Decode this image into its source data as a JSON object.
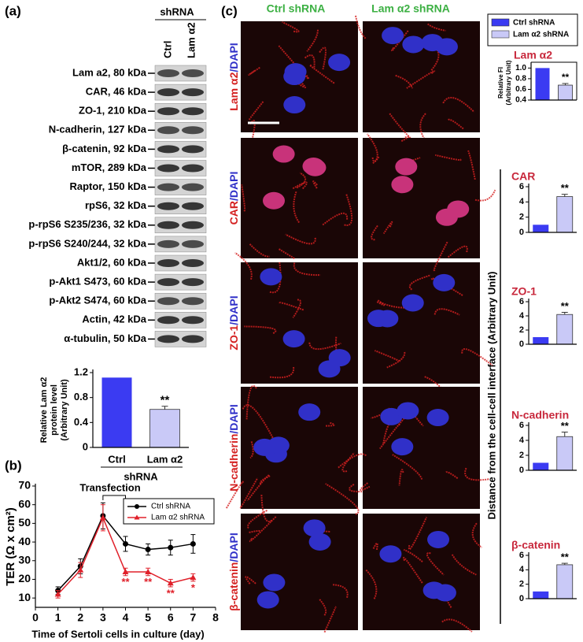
{
  "blot": {
    "label": "(a)",
    "group_label": "shRNA",
    "lanes": [
      "Ctrl",
      "Lam α2"
    ],
    "rows": [
      "Lam a2, 80 kDa",
      "CAR, 46 kDa",
      "ZO-1, 210 kDa",
      "N-cadherin, 127 kDa",
      "β-catenin, 92 kDa",
      "mTOR, 289 kDa",
      "Raptor, 150 kDa",
      "rpS6, 32 kDa",
      "p-rpS6 S235/236, 32 kDa",
      "p-rpS6 S240/244, 32 kDa",
      "Akt1/2, 60 kDa",
      "p-Akt1 S473, 60 kDa",
      "p-Akt2 S474, 60 kDa",
      "Actin, 42 kDa",
      "α-tubulin, 50 kDa"
    ]
  },
  "panel_b": {
    "label": "(b)"
  },
  "panel_c": {
    "label": "(c)",
    "columns": [
      "Ctrl shRNA",
      "Lam α2 shRNA"
    ],
    "rows": [
      {
        "protein": "Lam α2",
        "stain": "/DAPI"
      },
      {
        "protein": "CAR",
        "stain": "/DAPI"
      },
      {
        "protein": "ZO-1",
        "stain": "/DAPI"
      },
      {
        "protein": "N-cadherin",
        "stain": "/DAPI"
      },
      {
        "protein": "β-catenin",
        "stain": "/DAPI"
      }
    ],
    "y_label": "Distance from the cell-cell interface (Arbitrary Unit)"
  },
  "chart_data": [
    {
      "type": "bar",
      "categories": [
        "Ctrl",
        "Lam α2"
      ],
      "xlabel": "shRNA",
      "ylabel": [
        "Relative Lam α2",
        "protein level",
        "(Arbitrary Unit)"
      ],
      "values": [
        1.12,
        0.61
      ],
      "errors": [
        null,
        0.05
      ],
      "significance": [
        null,
        "**"
      ],
      "colors": [
        "#3b3bf2",
        "#c9c9f7"
      ],
      "ylim": [
        0,
        1.2
      ],
      "yticks": [
        0,
        0.4,
        0.8,
        1.2
      ]
    },
    {
      "type": "line",
      "xlabel": "Time of Sertoli cells in culture (day)",
      "ylabel": "TER (Ω x cm²)",
      "annotation": "Transfection",
      "x": [
        1,
        2,
        3,
        4,
        5,
        6,
        7
      ],
      "xlim": [
        0,
        8
      ],
      "xticks": [
        0,
        1,
        2,
        3,
        4,
        5,
        6,
        7,
        8
      ],
      "ylim": [
        5,
        70
      ],
      "yticks": [
        10,
        20,
        30,
        40,
        50,
        60,
        70
      ],
      "legend": "upper right",
      "series": [
        {
          "name": "Ctrl shRNA",
          "color": "#000000",
          "values": [
            14,
            27,
            54,
            39,
            36,
            37,
            39
          ],
          "errors": [
            2,
            4,
            7,
            4,
            3,
            4,
            5
          ],
          "significance": [
            null,
            null,
            null,
            null,
            null,
            null,
            null
          ]
        },
        {
          "name": "Lam α2 shRNA",
          "color": "#e0202a",
          "values": [
            12,
            25,
            53,
            24,
            24,
            18,
            21
          ],
          "errors": [
            2,
            4,
            7,
            2,
            2,
            2,
            2
          ],
          "significance": [
            null,
            null,
            null,
            "**",
            "**",
            "**",
            "*"
          ]
        }
      ]
    },
    {
      "type": "bar",
      "title": "Lam α2",
      "ylabel": [
        "Relative FI",
        "(Arbitrary Unit)"
      ],
      "series_names": [
        "Ctrl shRNA",
        "Lam α2 shRNA"
      ],
      "values": [
        1.0,
        0.68
      ],
      "errors": [
        null,
        0.03
      ],
      "significance": [
        null,
        "**"
      ],
      "colors": [
        "#3b3bf2",
        "#c9c9f7"
      ],
      "ylim": [
        0.4,
        1.05
      ],
      "yticks": [
        0.4,
        0.6,
        0.8,
        {
          "value": 1.0,
          "label": "1.0"
        }
      ]
    },
    {
      "type": "bar",
      "title": "CAR",
      "values": [
        1,
        4.7
      ],
      "errors": [
        null,
        0.3
      ],
      "significance": [
        null,
        "**"
      ],
      "colors": [
        "#3b3bf2",
        "#c9c9f7"
      ],
      "ylim": [
        0,
        6
      ],
      "yticks": [
        0,
        2,
        4,
        6
      ]
    },
    {
      "type": "bar",
      "title": "ZO-1",
      "values": [
        1,
        4.2
      ],
      "errors": [
        null,
        0.3
      ],
      "significance": [
        null,
        "**"
      ],
      "colors": [
        "#3b3bf2",
        "#c9c9f7"
      ],
      "ylim": [
        0,
        6
      ],
      "yticks": [
        0,
        2,
        4,
        6
      ]
    },
    {
      "type": "bar",
      "title": "N-cadherin",
      "values": [
        1,
        4.5
      ],
      "errors": [
        null,
        0.6
      ],
      "significance": [
        null,
        "**"
      ],
      "colors": [
        "#3b3bf2",
        "#c9c9f7"
      ],
      "ylim": [
        0,
        6
      ],
      "yticks": [
        0,
        2,
        4,
        6
      ]
    },
    {
      "type": "bar",
      "title": "β-catenin",
      "values": [
        1,
        4.7
      ],
      "errors": [
        null,
        0.2
      ],
      "significance": [
        null,
        "**"
      ],
      "colors": [
        "#3b3bf2",
        "#c9c9f7"
      ],
      "ylim": [
        0,
        6
      ],
      "yticks": [
        0,
        2,
        4,
        6
      ]
    }
  ]
}
